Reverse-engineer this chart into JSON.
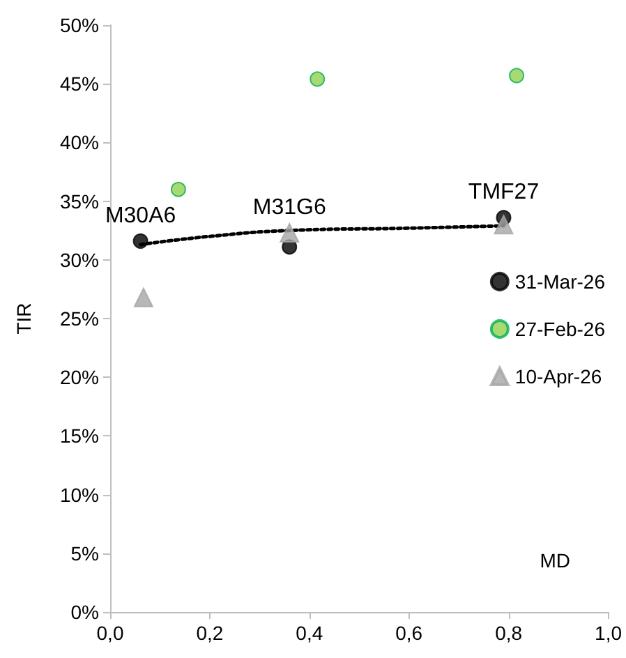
{
  "chart_data": {
    "type": "scatter",
    "xlabel": "MD",
    "ylabel": "TIR",
    "grid": false,
    "legend": "right",
    "xlim": [
      0,
      1
    ],
    "ylim": [
      0,
      50
    ],
    "xticks": [
      {
        "value": 0,
        "label": "0,0"
      },
      {
        "value": 0.2,
        "label": "0,2"
      },
      {
        "value": 0.4,
        "label": "0,4"
      },
      {
        "value": 0.6,
        "label": "0,6"
      },
      {
        "value": 0.8,
        "label": "0,8"
      },
      {
        "value": 1,
        "label": "1,0"
      }
    ],
    "yticks": [
      {
        "value": 0,
        "label": "0%"
      },
      {
        "value": 5,
        "label": "5%"
      },
      {
        "value": 10,
        "label": "10%"
      },
      {
        "value": 15,
        "label": "15%"
      },
      {
        "value": 20,
        "label": "20%"
      },
      {
        "value": 25,
        "label": "25%"
      },
      {
        "value": 30,
        "label": "30%"
      },
      {
        "value": 35,
        "label": "35%"
      },
      {
        "value": 40,
        "label": "40%"
      },
      {
        "value": 45,
        "label": "45%"
      },
      {
        "value": 50,
        "label": "50%"
      }
    ],
    "series": [
      {
        "name": "31-Mar-26",
        "color": "#000000",
        "marker": "circle",
        "x": [
          0.061,
          0.36,
          0.79
        ],
        "values": [
          31.6,
          31.1,
          33.6
        ]
      },
      {
        "name": "27-Feb-26",
        "color": "#92d050",
        "marker": "circle",
        "x": [
          0.137,
          0.416,
          0.816
        ],
        "values": [
          36.0,
          45.4,
          45.7
        ]
      },
      {
        "name": "10-Apr-26",
        "color": "#a5a5a5",
        "marker": "triangle",
        "x": [
          0.067,
          0.36,
          0.79
        ],
        "values": [
          26.8,
          32.3,
          33.0
        ]
      },
      {
        "type": "line",
        "color": "#000000",
        "marker": "none",
        "line_style": "dotted",
        "x": [
          0.061,
          0.2,
          0.36,
          0.6,
          0.79
        ],
        "values": [
          31.3,
          32.0,
          32.5,
          32.7,
          32.9
        ]
      }
    ],
    "annotations": [
      {
        "text": "M30A6",
        "x": 0.061,
        "y": 31.6
      },
      {
        "text": "M31G6",
        "x": 0.36,
        "y": 32.3
      },
      {
        "text": "TMF27",
        "x": 0.79,
        "y": 33.6
      }
    ]
  }
}
